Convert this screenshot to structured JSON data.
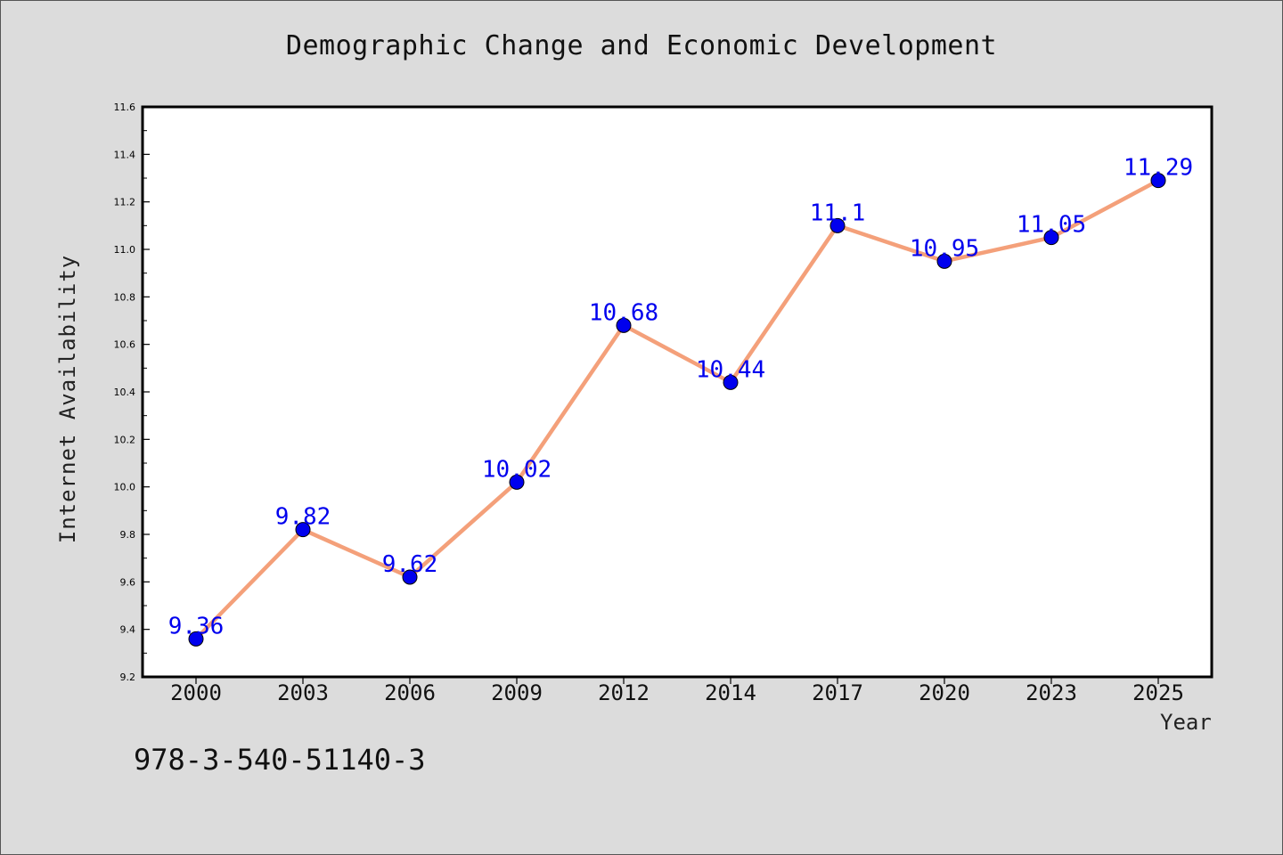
{
  "chart_data": {
    "type": "line",
    "title": "Demographic Change and Economic Development",
    "xlabel": "Year",
    "ylabel": "Internet Availability",
    "categories": [
      "2000",
      "2003",
      "2006",
      "2009",
      "2012",
      "2014",
      "2017",
      "2020",
      "2023",
      "2025"
    ],
    "values": [
      9.36,
      9.82,
      9.62,
      10.02,
      10.68,
      10.44,
      11.1,
      10.95,
      11.05,
      11.29
    ],
    "data_labels": [
      "9.36",
      "9.82",
      "9.62",
      "10.02",
      "10.68",
      "10.44",
      "11.1",
      "10.95",
      "11.05",
      "11.29"
    ],
    "ylim": [
      9.2,
      11.6
    ],
    "yticks": [
      "9.2",
      "9.4",
      "9.6",
      "9.8",
      "10.0",
      "10.2",
      "10.4",
      "10.6",
      "10.8",
      "11.0",
      "11.2",
      "11.4",
      "11.6"
    ],
    "grid": false,
    "line_color": "#f4a07a",
    "marker_color": "#0000ee",
    "label_color": "#0000ee"
  },
  "annotation": "978-3-540-51140-3"
}
